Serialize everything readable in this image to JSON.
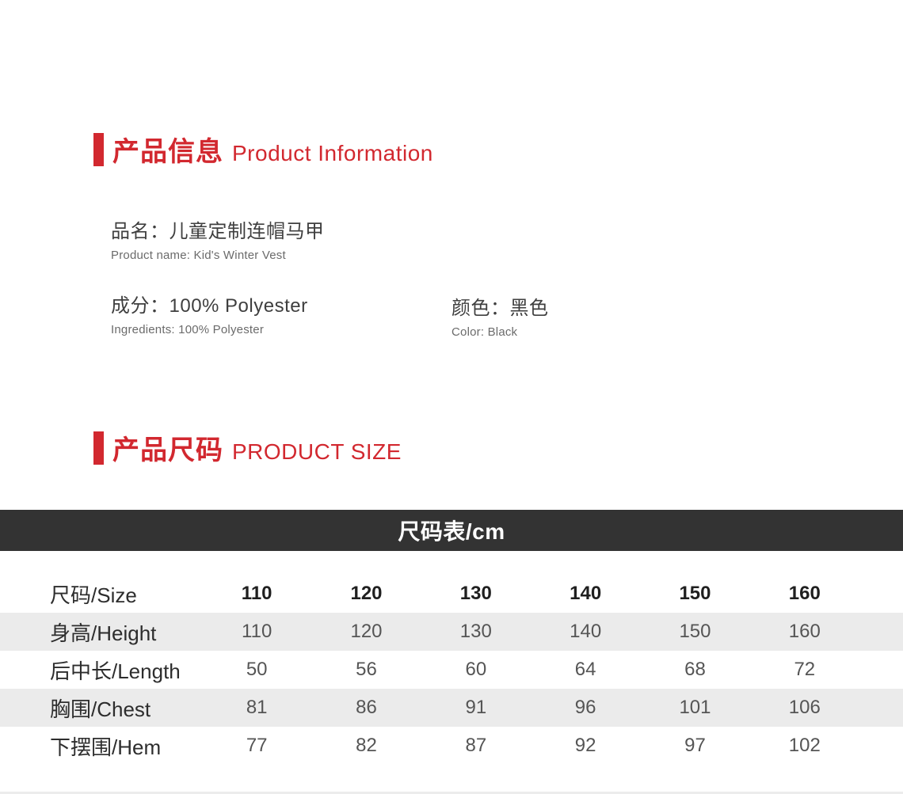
{
  "colors": {
    "accent_red": "#d2282f",
    "table_header_bg": "#333333",
    "row_stripe_bg": "#ebebeb",
    "page_bg": "#ffffff"
  },
  "info_section": {
    "title_zh": "产品信息",
    "title_en": "Product Information",
    "product_name": {
      "zh": "品名：儿童定制连帽马甲",
      "en": "Product name: Kid's Winter Vest"
    },
    "ingredients": {
      "zh": "成分：100% Polyester",
      "en": "Ingredients: 100% Polyester"
    },
    "color": {
      "zh": "颜色：黑色",
      "en": "Color: Black"
    }
  },
  "size_section": {
    "title_zh": "产品尺码",
    "title_en": "PRODUCT SIZE",
    "table_title": "尺码表/cm",
    "table": {
      "rows": [
        {
          "label": "尺码/Size",
          "values": [
            "110",
            "120",
            "130",
            "140",
            "150",
            "160"
          ]
        },
        {
          "label": "身高/Height",
          "values": [
            "110",
            "120",
            "130",
            "140",
            "150",
            "160"
          ]
        },
        {
          "label": "后中长/Length",
          "values": [
            "50",
            "56",
            "60",
            "64",
            "68",
            "72"
          ]
        },
        {
          "label": "胸围/Chest",
          "values": [
            "81",
            "86",
            "91",
            "96",
            "101",
            "106"
          ]
        },
        {
          "label": "下摆围/Hem",
          "values": [
            "77",
            "82",
            "87",
            "92",
            "97",
            "102"
          ]
        }
      ]
    }
  }
}
